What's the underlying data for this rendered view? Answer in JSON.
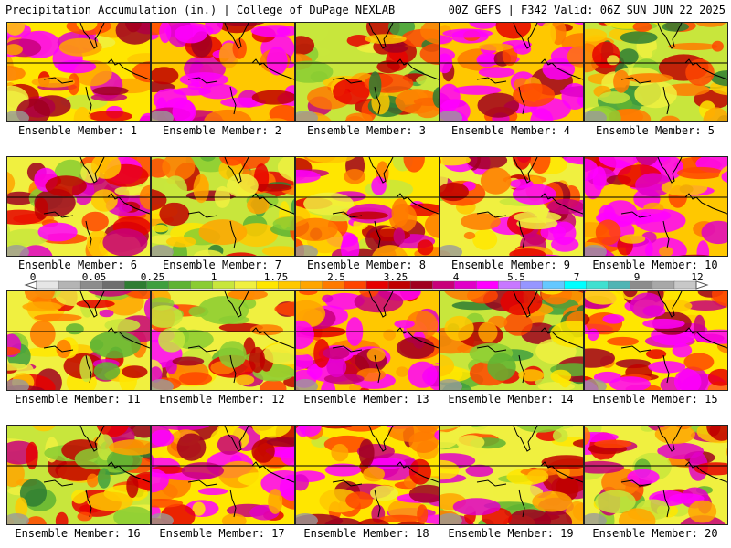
{
  "header": {
    "left": "Precipitation Accumulation (in.) | College of DuPage NEXLAB",
    "right": "00Z GEFS | F342 Valid: 06Z SUN JUN 22 2025"
  },
  "members": [
    {
      "label": "Ensemble Member: 1",
      "intensity": 0.72
    },
    {
      "label": "Ensemble Member: 2",
      "intensity": 0.9
    },
    {
      "label": "Ensemble Member: 3",
      "intensity": 0.45
    },
    {
      "label": "Ensemble Member: 4",
      "intensity": 0.85
    },
    {
      "label": "Ensemble Member: 5",
      "intensity": 0.4
    },
    {
      "label": "Ensemble Member: 6",
      "intensity": 0.6
    },
    {
      "label": "Ensemble Member: 7",
      "intensity": 0.42
    },
    {
      "label": "Ensemble Member: 8",
      "intensity": 0.7
    },
    {
      "label": "Ensemble Member: 9",
      "intensity": 0.65
    },
    {
      "label": "Ensemble Member: 10",
      "intensity": 0.88
    },
    {
      "label": "Ensemble Member: 11",
      "intensity": 0.55
    },
    {
      "label": "Ensemble Member: 12",
      "intensity": 0.58
    },
    {
      "label": "Ensemble Member: 13",
      "intensity": 0.92
    },
    {
      "label": "Ensemble Member: 14",
      "intensity": 0.4
    },
    {
      "label": "Ensemble Member: 15",
      "intensity": 0.82
    },
    {
      "label": "Ensemble Member: 16",
      "intensity": 0.45
    },
    {
      "label": "Ensemble Member: 17",
      "intensity": 0.8
    },
    {
      "label": "Ensemble Member: 18",
      "intensity": 0.7
    },
    {
      "label": "Ensemble Member: 19",
      "intensity": 0.55
    },
    {
      "label": "Ensemble Member: 20",
      "intensity": 0.62
    }
  ],
  "colorbar": {
    "ticks": [
      "0",
      "0.05",
      "0.25",
      "1",
      "1.75",
      "2.5",
      "3.25",
      "4",
      "5.5",
      "7",
      "9",
      "12"
    ],
    "colors": [
      "#e6e6e6",
      "#b4b4b4",
      "#8c8c8c",
      "#6e6e6e",
      "#2e7d32",
      "#3f9f3f",
      "#5fb332",
      "#8acc33",
      "#c8e63c",
      "#f0f040",
      "#ffe600",
      "#ffc800",
      "#ffa500",
      "#ff7a00",
      "#ff4500",
      "#e60000",
      "#c00000",
      "#a00020",
      "#c8007a",
      "#e100c8",
      "#ff00ff",
      "#c878ff",
      "#9696ff",
      "#64c8ff",
      "#00ffff",
      "#40e0d0",
      "#50b4b4",
      "#8c8c8c",
      "#a8a8a8",
      "#c8c8c8"
    ]
  }
}
